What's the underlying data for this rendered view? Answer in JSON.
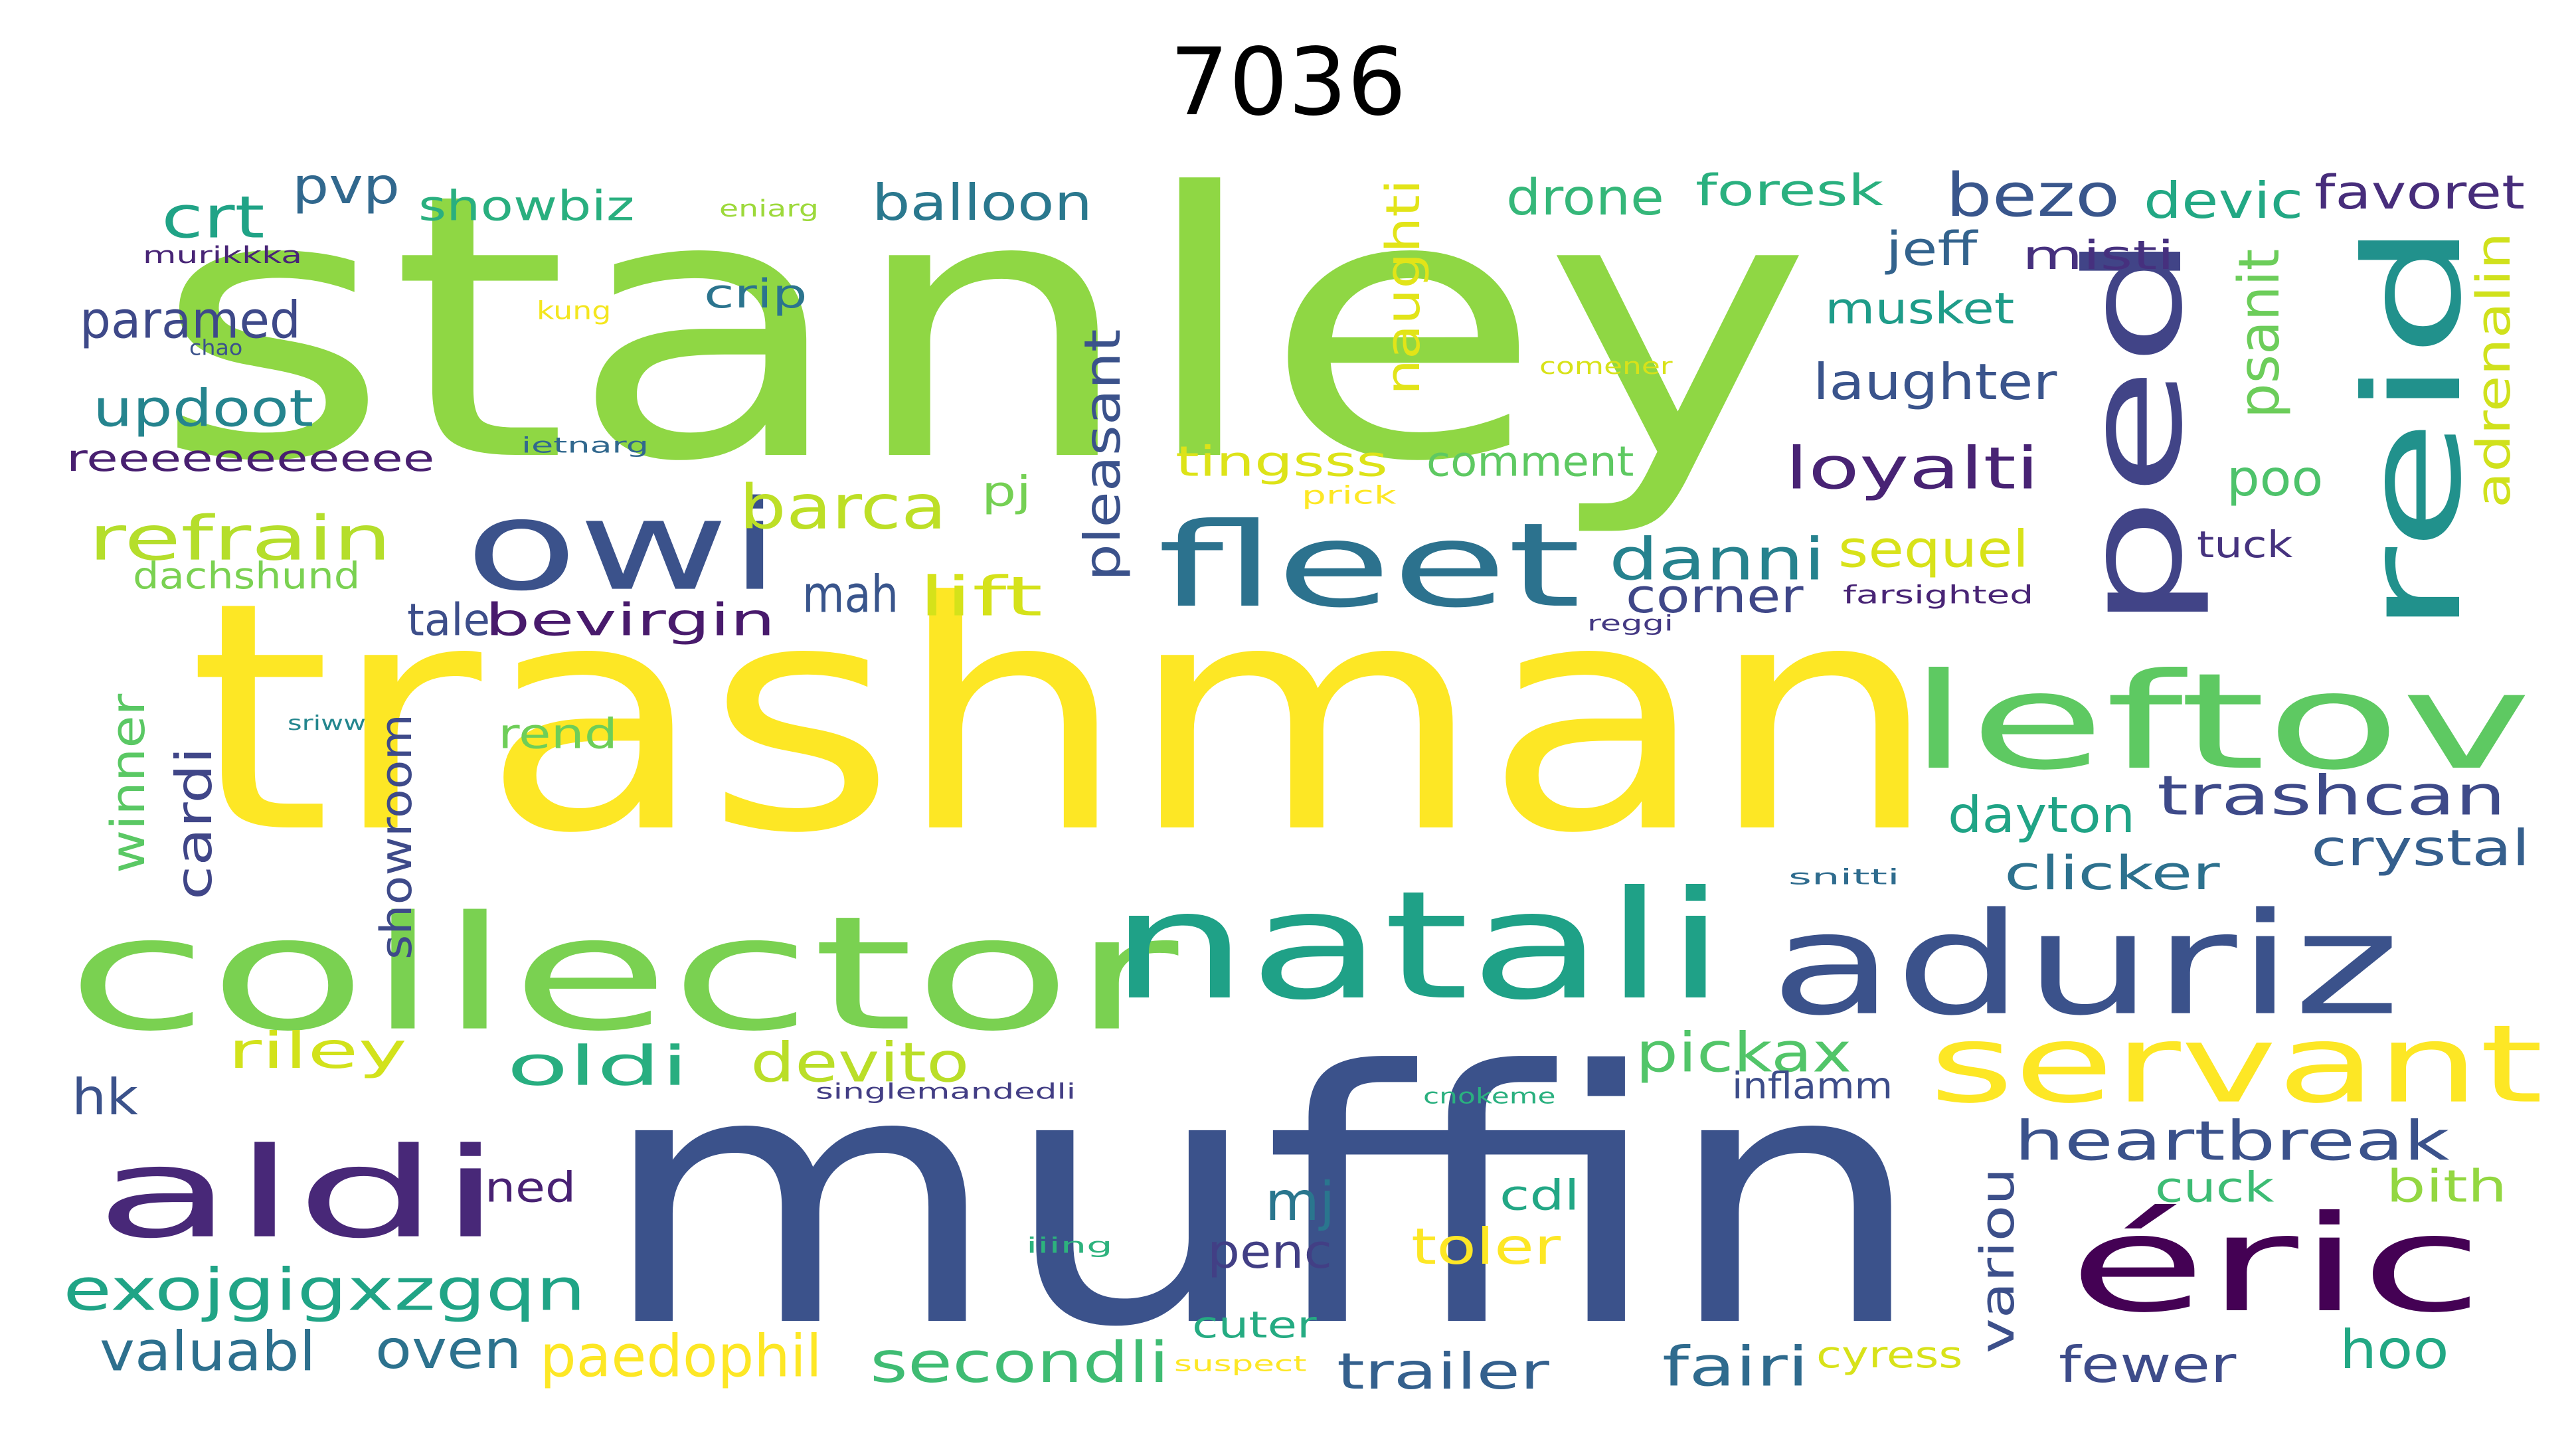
{
  "title": "7036",
  "words": [
    {
      "t": "stanley",
      "c": "#8fd744"
    },
    {
      "t": "trashman",
      "c": "#fde725"
    },
    {
      "t": "muffin",
      "c": "#3b528b"
    },
    {
      "t": "collector",
      "c": "#7ad151"
    },
    {
      "t": "natali",
      "c": "#1fa187"
    },
    {
      "t": "aduriz",
      "c": "#3b528b"
    },
    {
      "t": "leftov",
      "c": "#5ec962"
    },
    {
      "t": "owi",
      "c": "#3b528b"
    },
    {
      "t": "fleet",
      "c": "#2c728e"
    },
    {
      "t": "ped",
      "c": "#414487"
    },
    {
      "t": "reid",
      "c": "#21918c"
    },
    {
      "t": "aldi",
      "c": "#482878"
    },
    {
      "t": "éric",
      "c": "#440154"
    },
    {
      "t": "servant",
      "c": "#fde725"
    },
    {
      "t": "exojgigxzgqn",
      "c": "#20a486"
    },
    {
      "t": "oldi",
      "c": "#28ae80"
    },
    {
      "t": "heartbreak",
      "c": "#3b528b"
    },
    {
      "t": "trashcan",
      "c": "#3e4a89"
    },
    {
      "t": "crystal",
      "c": "#355f8d"
    },
    {
      "t": "secondli",
      "c": "#3fbc73"
    },
    {
      "t": "balloon",
      "c": "#2a788e"
    },
    {
      "t": "drone",
      "c": "#35b779"
    },
    {
      "t": "foresk",
      "c": "#2ab07f"
    },
    {
      "t": "bezo",
      "c": "#39568c"
    },
    {
      "t": "devic",
      "c": "#22a884"
    },
    {
      "t": "favoret",
      "c": "#472d7b"
    },
    {
      "t": "showbiz",
      "c": "#29af7f"
    },
    {
      "t": "pvp",
      "c": "#31688e"
    },
    {
      "t": "crt",
      "c": "#20a386"
    },
    {
      "t": "paramed",
      "c": "#3e4989"
    },
    {
      "t": "updoot",
      "c": "#25848e"
    },
    {
      "t": "reeeeeeeeeee",
      "c": "#481f70"
    },
    {
      "t": "refrain",
      "c": "#b5de2b"
    },
    {
      "t": "dachshund",
      "c": "#7ad151"
    },
    {
      "t": "barca",
      "c": "#bddf26"
    },
    {
      "t": "danni",
      "c": "#26828e"
    },
    {
      "t": "sequel",
      "c": "#d8e219"
    },
    {
      "t": "corner",
      "c": "#3f4788"
    },
    {
      "t": "loyalti",
      "c": "#482374"
    },
    {
      "t": "laughter",
      "c": "#3a548c"
    },
    {
      "t": "musket",
      "c": "#1e9c89"
    },
    {
      "t": "jeff",
      "c": "#33638d"
    },
    {
      "t": "misti",
      "c": "#46307e"
    },
    {
      "t": "pleasant",
      "c": "#3b528b"
    },
    {
      "t": "naughti",
      "c": "#e2e418"
    },
    {
      "t": "psanit",
      "c": "#6ccd5a"
    },
    {
      "t": "adrenalin",
      "c": "#d0e11c"
    },
    {
      "t": "poo",
      "c": "#4ec36b"
    },
    {
      "t": "tuck",
      "c": "#46337f"
    },
    {
      "t": "tingsss",
      "c": "#dde318"
    },
    {
      "t": "comment",
      "c": "#5ec962"
    },
    {
      "t": "tale",
      "c": "#3d4e8a"
    },
    {
      "t": "bevirgin",
      "c": "#481a6c"
    },
    {
      "t": "mah",
      "c": "#39558c"
    },
    {
      "t": "lift",
      "c": "#d5e21a"
    },
    {
      "t": "winner",
      "c": "#5ac864"
    },
    {
      "t": "cardi",
      "c": "#404688"
    },
    {
      "t": "showroom",
      "c": "#3e4a89"
    },
    {
      "t": "rend",
      "c": "#6ece58"
    },
    {
      "t": "dayton",
      "c": "#20a486"
    },
    {
      "t": "clicker",
      "c": "#2d718e"
    },
    {
      "t": "riley",
      "c": "#d2e21b"
    },
    {
      "t": "devito",
      "c": "#bade28"
    },
    {
      "t": "pickax",
      "c": "#52c569"
    },
    {
      "t": "inflamm",
      "c": "#3d4d8a"
    },
    {
      "t": "hk",
      "c": "#3b528b"
    },
    {
      "t": "ned",
      "c": "#482173"
    },
    {
      "t": "mj",
      "c": "#2a768e"
    },
    {
      "t": "penc",
      "c": "#423f85"
    },
    {
      "t": "toler",
      "c": "#fde725"
    },
    {
      "t": "cdl",
      "c": "#22a785"
    },
    {
      "t": "cuck",
      "c": "#3dbc74"
    },
    {
      "t": "bith",
      "c": "#93d741"
    },
    {
      "t": "variou",
      "c": "#3c4f8a"
    },
    {
      "t": "valuabl",
      "c": "#2d708e"
    },
    {
      "t": "oven",
      "c": "#2c728e"
    },
    {
      "t": "paedophil",
      "c": "#fde725"
    },
    {
      "t": "cuter",
      "c": "#25ab82"
    },
    {
      "t": "trailer",
      "c": "#34608d"
    },
    {
      "t": "fairi",
      "c": "#2f6b8e"
    },
    {
      "t": "cyress",
      "c": "#d8e219"
    },
    {
      "t": "fewer",
      "c": "#3e4c8a"
    },
    {
      "t": "hoo",
      "c": "#22a884"
    },
    {
      "t": "pj",
      "c": "#75d054"
    },
    {
      "t": "crip",
      "c": "#2b748e"
    },
    {
      "t": "eniarg",
      "c": "#9dd93b"
    },
    {
      "t": "murikkka",
      "c": "#482576"
    },
    {
      "t": "kung",
      "c": "#f4e61e"
    },
    {
      "t": "chao",
      "c": "#3b528b"
    },
    {
      "t": "comener",
      "c": "#d8e219"
    },
    {
      "t": "ietnarg",
      "c": "#31688e"
    },
    {
      "t": "prick",
      "c": "#fde725"
    },
    {
      "t": "farsighted",
      "c": "#482475"
    },
    {
      "t": "reggi",
      "c": "#443983"
    },
    {
      "t": "sriww",
      "c": "#24868e"
    },
    {
      "t": "snitti",
      "c": "#2f6c8e"
    },
    {
      "t": "singlemandedli",
      "c": "#433e85"
    },
    {
      "t": "cnokeme",
      "c": "#2ab07f"
    },
    {
      "t": "iiing",
      "c": "#2db27d"
    },
    {
      "t": "suspect",
      "c": "#fde725"
    }
  ]
}
